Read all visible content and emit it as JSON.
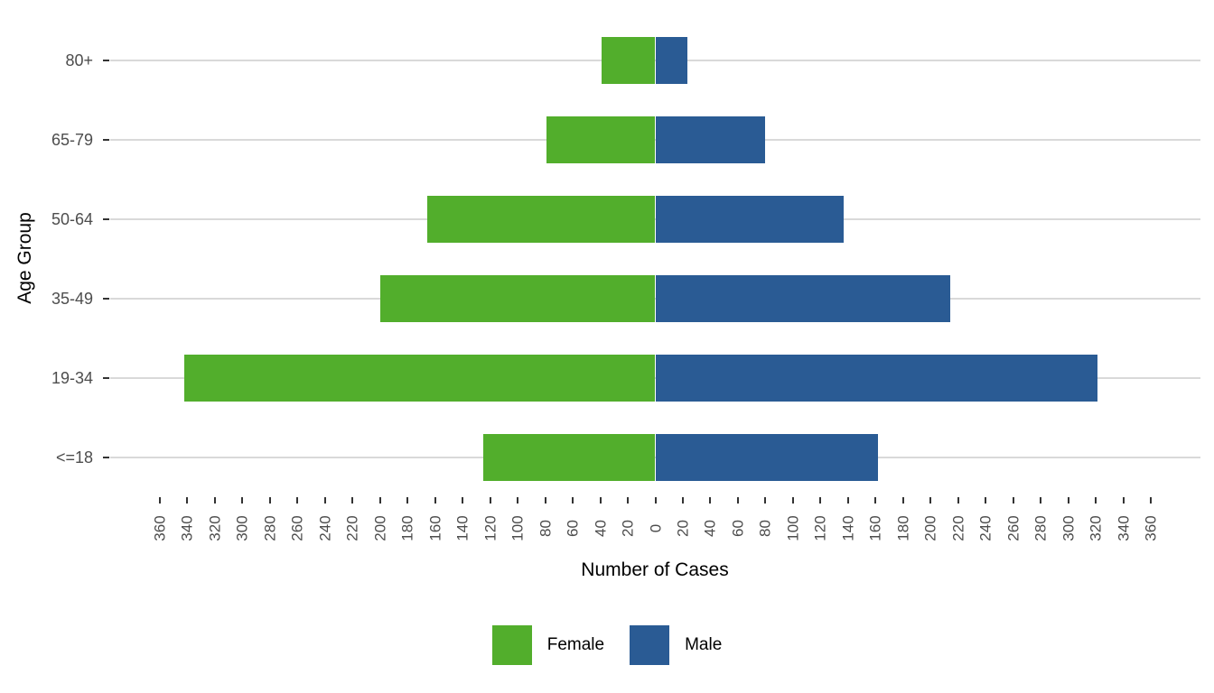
{
  "chart_data": {
    "type": "bar",
    "variant": "population-pyramid",
    "orientation": "horizontal-diverging",
    "title": "",
    "xlabel": "Number of Cases",
    "ylabel": "Age Group",
    "categories_top_to_bottom": [
      "80+",
      "65-79",
      "50-64",
      "35-49",
      "19-34",
      "<=18"
    ],
    "series": [
      {
        "name": "Female",
        "side": "left",
        "color": "#52AE2C",
        "values": [
          39,
          79,
          166,
          200,
          342,
          125
        ]
      },
      {
        "name": "Male",
        "side": "right",
        "color": "#2A5B94",
        "values": [
          23,
          80,
          137,
          214,
          321,
          162
        ]
      }
    ],
    "x_axis": {
      "tick_min": -360,
      "tick_max": 360,
      "tick_step": 20,
      "tick_labels_absolute": true,
      "tick_label_rotation_deg": 90
    },
    "grid": "horizontal-major-only",
    "grid_color": "#d9d9d9",
    "background": "#ffffff",
    "legend_position": "bottom"
  }
}
